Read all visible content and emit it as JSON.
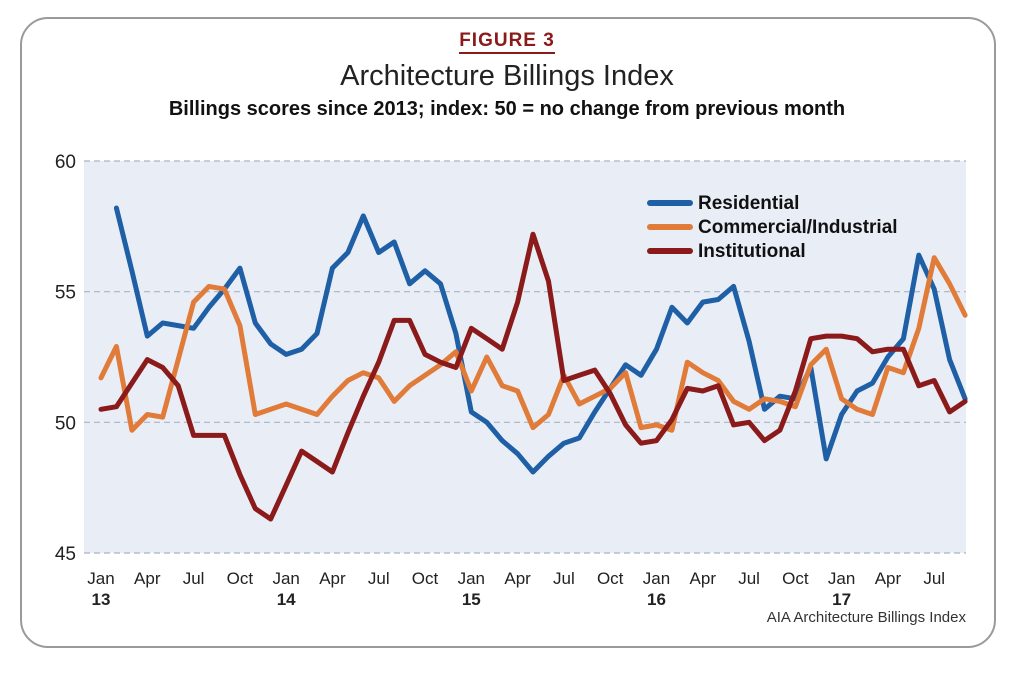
{
  "figure_label": "FIGURE 3",
  "title": "Architecture Billings Index",
  "subtitle": "Billings scores since 2013; index: 50 = no change from previous month",
  "source": "AIA Architecture Billings Index",
  "chart_data": {
    "type": "line",
    "ylim": [
      45,
      60
    ],
    "yticks": [
      45,
      50,
      55,
      60
    ],
    "grid": true,
    "legend_position": "top-right",
    "background": "#e9eef6",
    "x_tick_labels": [
      {
        "month": 0,
        "label": "Jan",
        "year": "13"
      },
      {
        "month": 3,
        "label": "Apr",
        "year": ""
      },
      {
        "month": 6,
        "label": "Jul",
        "year": ""
      },
      {
        "month": 9,
        "label": "Oct",
        "year": ""
      },
      {
        "month": 12,
        "label": "Jan",
        "year": "14"
      },
      {
        "month": 15,
        "label": "Apr",
        "year": ""
      },
      {
        "month": 18,
        "label": "Jul",
        "year": ""
      },
      {
        "month": 21,
        "label": "Oct",
        "year": ""
      },
      {
        "month": 24,
        "label": "Jan",
        "year": "15"
      },
      {
        "month": 27,
        "label": "Apr",
        "year": ""
      },
      {
        "month": 30,
        "label": "Jul",
        "year": ""
      },
      {
        "month": 33,
        "label": "Oct",
        "year": ""
      },
      {
        "month": 36,
        "label": "Jan",
        "year": "16"
      },
      {
        "month": 39,
        "label": "Apr",
        "year": ""
      },
      {
        "month": 42,
        "label": "Jul",
        "year": ""
      },
      {
        "month": 45,
        "label": "Oct",
        "year": ""
      },
      {
        "month": 48,
        "label": "Jan",
        "year": "17"
      },
      {
        "month": 51,
        "label": "Apr",
        "year": ""
      },
      {
        "month": 54,
        "label": "Jul",
        "year": ""
      }
    ],
    "series": [
      {
        "name": "Residential",
        "color": "#1f5fa6",
        "start_month": 1,
        "values": [
          58.2,
          55.8,
          53.3,
          53.8,
          53.7,
          53.6,
          54.4,
          55.1,
          55.9,
          53.8,
          53.0,
          52.6,
          52.8,
          53.4,
          55.9,
          56.5,
          57.9,
          56.5,
          56.9,
          55.3,
          55.8,
          55.3,
          53.4,
          50.4,
          50.0,
          49.3,
          48.8,
          48.1,
          48.7,
          49.2,
          49.4,
          50.4,
          51.3,
          52.2,
          51.8,
          52.8,
          54.4,
          53.8,
          54.6,
          54.7,
          55.2,
          53.1,
          50.5,
          51.0,
          50.9,
          52.1,
          48.6,
          50.3,
          51.2,
          51.5,
          52.5,
          53.2,
          56.4,
          55.1,
          52.4,
          50.9
        ]
      },
      {
        "name": "Commercial/Industrial",
        "color": "#e07b39",
        "start_month": 0,
        "values": [
          51.7,
          52.9,
          49.7,
          50.3,
          50.2,
          52.4,
          54.6,
          55.2,
          55.1,
          53.7,
          50.3,
          50.5,
          50.7,
          50.5,
          50.3,
          51.0,
          51.6,
          51.9,
          51.7,
          50.8,
          51.4,
          51.8,
          52.2,
          52.7,
          51.2,
          52.5,
          51.4,
          51.2,
          49.8,
          50.3,
          51.8,
          50.7,
          51.0,
          51.3,
          51.9,
          49.8,
          49.9,
          49.7,
          52.3,
          51.9,
          51.6,
          50.8,
          50.5,
          50.9,
          50.8,
          50.6,
          52.2,
          52.8,
          50.9,
          50.5,
          50.3,
          52.1,
          51.9,
          53.6,
          56.3,
          55.3,
          54.1
        ]
      },
      {
        "name": "Institutional",
        "color": "#8b1a1a",
        "start_month": 0,
        "values": [
          50.5,
          50.6,
          51.5,
          52.4,
          52.1,
          51.4,
          49.5,
          49.5,
          49.5,
          48.0,
          46.7,
          46.3,
          47.6,
          48.9,
          48.5,
          48.1,
          49.6,
          51.0,
          52.3,
          53.9,
          53.9,
          52.6,
          52.3,
          52.1,
          53.6,
          53.2,
          52.8,
          54.6,
          57.2,
          55.4,
          51.6,
          51.8,
          52.0,
          51.1,
          49.9,
          49.2,
          49.3,
          50.1,
          51.3,
          51.2,
          51.4,
          49.9,
          50.0,
          49.3,
          49.7,
          51.2,
          53.2,
          53.3,
          53.3,
          53.2,
          52.7,
          52.8,
          52.8,
          51.4,
          51.6,
          50.4,
          50.8
        ]
      }
    ]
  }
}
